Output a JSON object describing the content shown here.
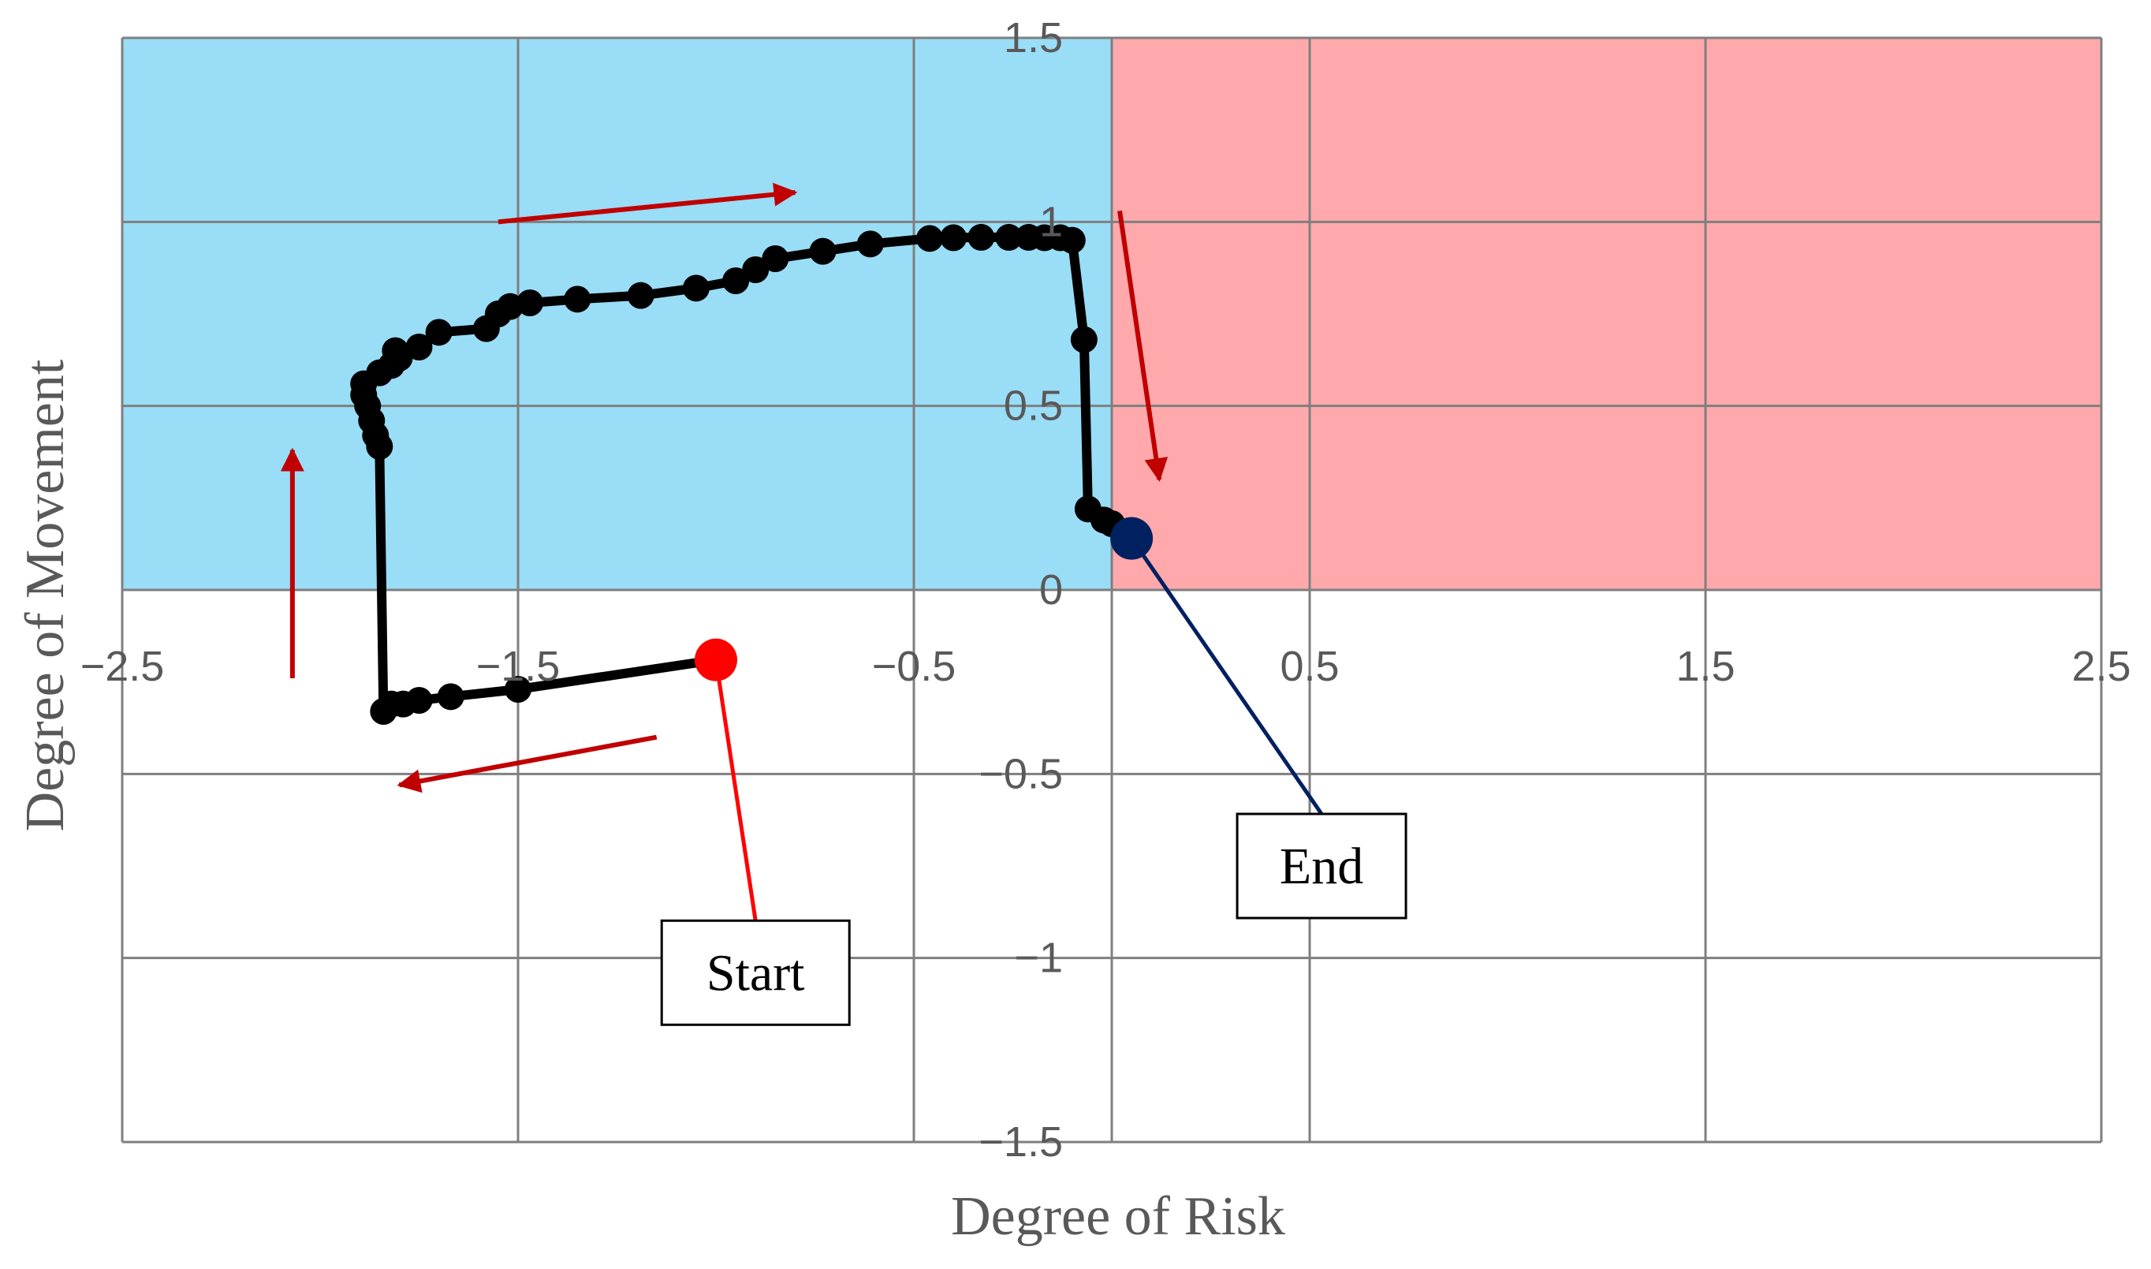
{
  "chart_data": {
    "type": "scatter",
    "title": "",
    "xlabel": "Degree of Risk",
    "ylabel": "Degree of Movement",
    "xlim": [
      -2.5,
      2.5
    ],
    "ylim": [
      -1.5,
      1.5
    ],
    "x_ticks": [
      -2.5,
      -1.5,
      -0.5,
      0.5,
      1.5,
      2.5
    ],
    "x_tick_labels": [
      "−2.5",
      "−1.5",
      "−0.5",
      "0.5",
      "1.5",
      "2.5"
    ],
    "y_ticks": [
      1.5,
      1,
      0.5,
      0,
      -0.5,
      -1,
      -1.5
    ],
    "y_tick_labels": [
      "1.5",
      "1",
      "0.5",
      "0",
      "−0.5",
      "−1",
      "−1.5"
    ],
    "x_grid": [
      -2.5,
      -1.5,
      -0.5,
      0.5,
      1.5,
      2.5
    ],
    "grid": true,
    "regions": [
      {
        "name": "blue-quadrant",
        "x": [
          -2.5,
          0
        ],
        "y": [
          0,
          1.5
        ],
        "color": "#99DDF7"
      },
      {
        "name": "red-quadrant",
        "x": [
          0,
          2.5
        ],
        "y": [
          0,
          1.5
        ],
        "color": "#FFA9AC"
      }
    ],
    "series": [
      {
        "line_color": "#000000",
        "marker_color": "#000000",
        "points": [
          {
            "x": -1.0,
            "y": -0.19
          },
          {
            "x": -1.5,
            "y": -0.27
          },
          {
            "x": -1.67,
            "y": -0.29
          },
          {
            "x": -1.75,
            "y": -0.3
          },
          {
            "x": -1.79,
            "y": -0.31
          },
          {
            "x": -1.82,
            "y": -0.31
          },
          {
            "x": -1.84,
            "y": -0.33
          },
          {
            "x": -1.85,
            "y": 0.39
          },
          {
            "x": -1.86,
            "y": 0.42
          },
          {
            "x": -1.87,
            "y": 0.46
          },
          {
            "x": -1.88,
            "y": 0.5
          },
          {
            "x": -1.89,
            "y": 0.53
          },
          {
            "x": -1.89,
            "y": 0.56
          },
          {
            "x": -1.85,
            "y": 0.59
          },
          {
            "x": -1.82,
            "y": 0.61
          },
          {
            "x": -1.8,
            "y": 0.63
          },
          {
            "x": -1.81,
            "y": 0.65
          },
          {
            "x": -1.75,
            "y": 0.66
          },
          {
            "x": -1.7,
            "y": 0.7
          },
          {
            "x": -1.58,
            "y": 0.71
          },
          {
            "x": -1.55,
            "y": 0.75
          },
          {
            "x": -1.52,
            "y": 0.77
          },
          {
            "x": -1.47,
            "y": 0.78
          },
          {
            "x": -1.35,
            "y": 0.79
          },
          {
            "x": -1.19,
            "y": 0.8
          },
          {
            "x": -1.05,
            "y": 0.82
          },
          {
            "x": -0.95,
            "y": 0.84
          },
          {
            "x": -0.9,
            "y": 0.87
          },
          {
            "x": -0.85,
            "y": 0.9
          },
          {
            "x": -0.73,
            "y": 0.92
          },
          {
            "x": -0.61,
            "y": 0.94
          },
          {
            "x": -0.46,
            "y": 0.955
          },
          {
            "x": -0.4,
            "y": 0.957
          },
          {
            "x": -0.33,
            "y": 0.958
          },
          {
            "x": -0.26,
            "y": 0.958
          },
          {
            "x": -0.21,
            "y": 0.958
          },
          {
            "x": -0.17,
            "y": 0.957
          },
          {
            "x": -0.13,
            "y": 0.957
          },
          {
            "x": -0.1,
            "y": 0.95
          },
          {
            "x": -0.07,
            "y": 0.68
          },
          {
            "x": -0.06,
            "y": 0.22
          },
          {
            "x": -0.02,
            "y": 0.19
          },
          {
            "x": 0.0,
            "y": 0.18
          },
          {
            "x": 0.05,
            "y": 0.14
          }
        ]
      }
    ],
    "start_point": {
      "x": -1.0,
      "y": -0.19,
      "color": "#FF0000"
    },
    "end_point": {
      "x": 0.05,
      "y": 0.14,
      "color": "#002060"
    },
    "annotations": [
      {
        "text": "Start",
        "x": -0.9,
        "y": -1.04,
        "line_color": "#FF0000",
        "points_to": "start_point"
      },
      {
        "text": "End",
        "x": 0.53,
        "y": -0.75,
        "line_color": "#002060",
        "points_to": "end_point"
      }
    ],
    "direction_arrows": [
      {
        "from": [
          -1.55,
          1.0
        ],
        "to": [
          -0.8,
          1.08
        ],
        "color": "#C00000"
      },
      {
        "from": [
          0.02,
          1.03
        ],
        "to": [
          0.12,
          0.3
        ],
        "color": "#C00000"
      },
      {
        "from": [
          -2.07,
          -0.24
        ],
        "to": [
          -2.07,
          0.38
        ],
        "color": "#C00000"
      },
      {
        "from": [
          -1.15,
          -0.4
        ],
        "to": [
          -1.8,
          -0.53
        ],
        "color": "#C00000"
      }
    ]
  }
}
